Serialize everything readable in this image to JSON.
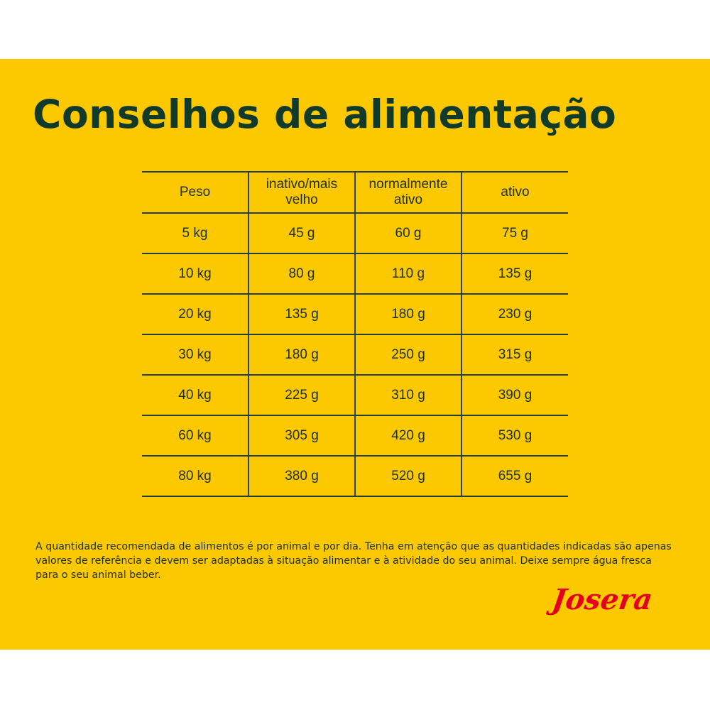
{
  "title": "Conselhos de alimentação",
  "table": {
    "headers": [
      "Peso",
      "inativo/mais velho",
      "normalmente ativo",
      "ativo"
    ],
    "rows": [
      [
        "5 kg",
        "45 g",
        "60 g",
        "75 g"
      ],
      [
        "10 kg",
        "80 g",
        "110 g",
        "135 g"
      ],
      [
        "20 kg",
        "135 g",
        "180 g",
        "230 g"
      ],
      [
        "30 kg",
        "180 g",
        "250 g",
        "315 g"
      ],
      [
        "40 kg",
        "225 g",
        "310 g",
        "390 g"
      ],
      [
        "60 kg",
        "305 g",
        "420 g",
        "530 g"
      ],
      [
        "80 kg",
        "380 g",
        "520 g",
        "655 g"
      ]
    ]
  },
  "note": "A quantidade recomendada de alimentos é por animal e por dia. Tenha em atenção que as quantidades indicadas são apenas valores de referência e devem ser adaptadas à situação alimentar e à atividade do seu animal. Deixe sempre água fresca para o seu animal beber.",
  "brand": "Josera",
  "colors": {
    "background": "#fcc800",
    "title": "#123a28",
    "rules": "#25403a",
    "brand": "#e2001a"
  }
}
